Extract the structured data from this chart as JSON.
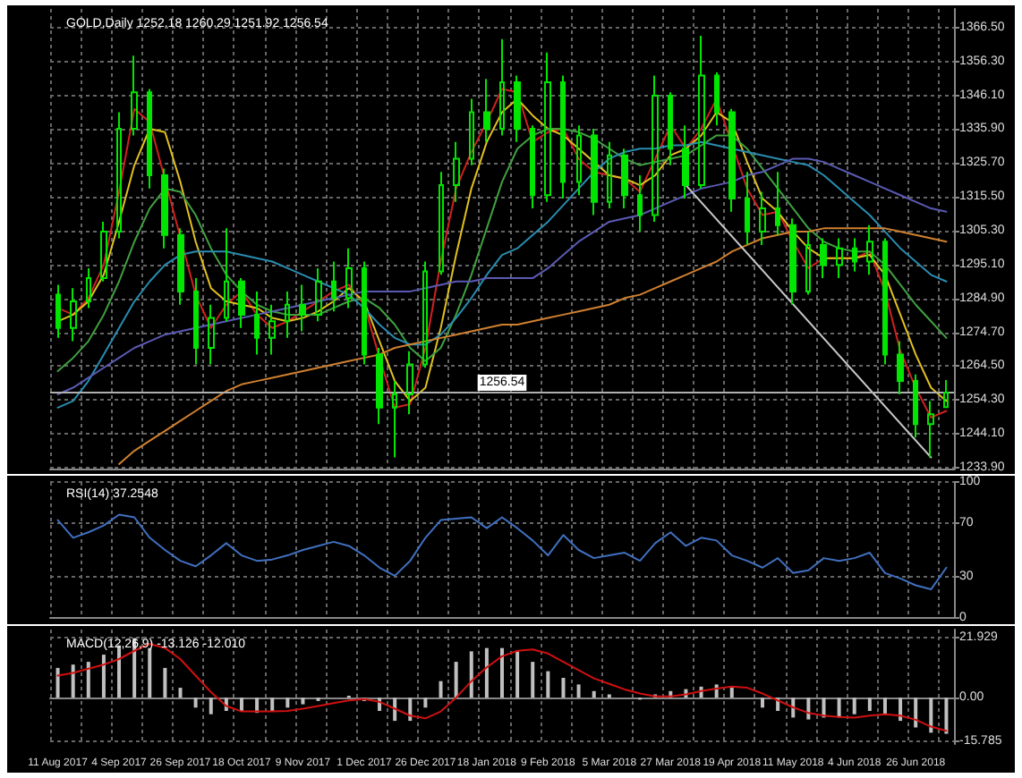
{
  "chart_data": [
    {
      "type": "candlestick",
      "title": "GOLD,Daily 1252.18 1260.29 1251.92 1256.54",
      "categories": [
        null,
        null,
        null,
        null,
        null,
        null,
        null,
        null,
        null,
        null,
        null,
        null,
        null,
        null,
        null,
        null,
        null,
        null,
        null,
        null,
        null,
        null,
        null,
        null,
        null,
        null,
        null,
        null,
        null,
        null,
        null,
        null,
        null,
        null,
        null,
        null,
        null,
        null,
        null,
        null,
        null,
        null,
        null,
        null,
        null,
        null,
        null,
        null,
        null,
        null,
        null,
        null,
        null,
        null,
        null,
        null,
        null,
        null,
        null
      ],
      "color": "#00e600",
      "ohlc": [
        [
          1286,
          1289,
          1273,
          1276
        ],
        [
          1276,
          1288,
          1272,
          1284
        ],
        [
          1284,
          1294,
          1282,
          1291
        ],
        [
          1291,
          1308,
          1290,
          1305
        ],
        [
          1305,
          1341,
          1303,
          1336
        ],
        [
          1336,
          1358,
          1334,
          1347
        ],
        [
          1347,
          1348,
          1318,
          1322
        ],
        [
          1322,
          1324,
          1300,
          1304
        ],
        [
          1304,
          1306,
          1283,
          1287
        ],
        [
          1287,
          1291,
          1265,
          1270
        ],
        [
          1270,
          1283,
          1265,
          1279
        ],
        [
          1279,
          1306,
          1278,
          1290
        ],
        [
          1290,
          1291,
          1276,
          1280
        ],
        [
          1280,
          1287,
          1268,
          1273
        ],
        [
          1273,
          1283,
          1268,
          1278
        ],
        [
          1278,
          1287,
          1273,
          1283
        ],
        [
          1283,
          1289,
          1275,
          1280
        ],
        [
          1280,
          1294,
          1278,
          1290
        ],
        [
          1290,
          1296,
          1281,
          1285
        ],
        [
          1285,
          1300,
          1282,
          1294
        ],
        [
          1294,
          1296,
          1265,
          1268
        ],
        [
          1268,
          1270,
          1247,
          1252
        ],
        [
          1252,
          1260,
          1237,
          1256
        ],
        [
          1256,
          1269,
          1250,
          1265
        ],
        [
          1265,
          1296,
          1264,
          1293
        ],
        [
          1293,
          1323,
          1292,
          1319
        ],
        [
          1319,
          1332,
          1314,
          1327
        ],
        [
          1327,
          1345,
          1325,
          1341
        ],
        [
          1341,
          1351,
          1332,
          1336
        ],
        [
          1336,
          1363,
          1334,
          1350
        ],
        [
          1350,
          1352,
          1332,
          1336
        ],
        [
          1336,
          1337,
          1312,
          1316
        ],
        [
          1316,
          1359,
          1314,
          1350
        ],
        [
          1350,
          1352,
          1315,
          1320
        ],
        [
          1320,
          1337,
          1316,
          1334
        ],
        [
          1334,
          1336,
          1310,
          1314
        ],
        [
          1314,
          1332,
          1312,
          1328
        ],
        [
          1328,
          1330,
          1312,
          1316
        ],
        [
          1316,
          1322,
          1305,
          1310
        ],
        [
          1310,
          1352,
          1308,
          1346
        ],
        [
          1346,
          1347,
          1325,
          1330
        ],
        [
          1330,
          1337,
          1315,
          1319
        ],
        [
          1319,
          1364,
          1318,
          1352
        ],
        [
          1352,
          1353,
          1337,
          1341
        ],
        [
          1341,
          1342,
          1311,
          1315
        ],
        [
          1315,
          1323,
          1301,
          1305
        ],
        [
          1305,
          1317,
          1301,
          1312
        ],
        [
          1312,
          1323,
          1304,
          1307
        ],
        [
          1307,
          1309,
          1283,
          1287
        ],
        [
          1287,
          1305,
          1286,
          1301
        ],
        [
          1301,
          1303,
          1291,
          1295
        ],
        [
          1295,
          1303,
          1291,
          1300
        ],
        [
          1300,
          1303,
          1293,
          1296
        ],
        [
          1296,
          1307,
          1292,
          1302
        ],
        [
          1302,
          1303,
          1265,
          1268
        ],
        [
          1268,
          1272,
          1256,
          1260
        ],
        [
          1260,
          1262,
          1243,
          1247
        ],
        [
          1247,
          1254,
          1237,
          1250
        ],
        [
          1252.18,
          1260.29,
          1251.92,
          1256.54
        ]
      ],
      "series": [
        {
          "type": "line",
          "color": "#d02020",
          "values": [
            1282,
            1280,
            1285,
            1295,
            1317,
            1342,
            1338,
            null,
            null,
            1286,
            1276,
            1283,
            1287,
            1280,
            1276,
            1278,
            1281,
            1284,
            1287,
            1289,
            1283,
            1267,
            1252,
            1253,
            1270,
            1296,
            1318,
            1329,
            1338,
            1348,
            1347,
            1332,
            1335,
            1336,
            1327,
            1323,
            1322,
            1321,
            1317,
            1327,
            1337,
            1330,
            1336,
            1345,
            null,
            1318,
            1310,
            1311,
            1302,
            1294,
            1297,
            1297,
            1297,
            1299,
            1287,
            1269,
            1258,
            1249,
            1251
          ]
        },
        {
          "type": "line",
          "color": "#e0c020",
          "values": [
            1278,
            1280,
            1284,
            1292,
            1308,
            1325,
            1336,
            1335,
            1320,
            1302,
            1288,
            1284,
            1283,
            1282,
            1279,
            1278,
            1279,
            1281,
            1284,
            1288,
            1284,
            1272,
            1260,
            1254,
            1258,
            1276,
            1298,
            1318,
            1332,
            1341,
            1345,
            1340,
            1336,
            1334,
            1330,
            1326,
            1322,
            1321,
            1319,
            1322,
            1328,
            1330,
            1334,
            1341,
            1338,
            1326,
            1315,
            1311,
            1305,
            1300,
            1297,
            1297,
            1297,
            1298,
            1292,
            1280,
            1268,
            1258,
            1254
          ]
        },
        {
          "type": "line",
          "color": "#40a040",
          "values": [
            1263,
            1267,
            1272,
            1280,
            1290,
            1302,
            1312,
            1318,
            1317,
            1310,
            1300,
            1292,
            1287,
            1283,
            1281,
            1280,
            1280,
            1280,
            1282,
            1284,
            1285,
            1282,
            1277,
            1270,
            1266,
            1270,
            1280,
            1292,
            1306,
            1320,
            1330,
            1334,
            1336,
            1336,
            1335,
            1333,
            1330,
            1327,
            1325,
            1326,
            1327,
            1328,
            1331,
            1334,
            1334,
            1330,
            1324,
            1318,
            1312,
            1306,
            1302,
            1300,
            1299,
            1299,
            1295,
            1289,
            1283,
            1278,
            1273
          ]
        },
        {
          "type": "line",
          "color": "#2a8cb0",
          "values": [
            1252,
            1254,
            1260,
            1268,
            1276,
            1284,
            1290,
            1295,
            1298,
            1299,
            1299,
            1299,
            1298,
            1297,
            1296,
            1294,
            1292,
            1290,
            1288,
            1286,
            1282,
            1277,
            1273,
            1271,
            1271,
            1274,
            1279,
            1285,
            1292,
            1298,
            1300,
            1304,
            1308,
            1313,
            1318,
            1323,
            1327,
            1329,
            1330,
            1330,
            1331,
            1331,
            1332,
            1331,
            1330,
            1329,
            1328,
            1327,
            1326,
            1325,
            1322,
            1318,
            1314,
            1310,
            1305,
            1300,
            1296,
            1292,
            1290
          ]
        },
        {
          "type": "line",
          "color": "#5a5ab4",
          "values": [
            1256,
            1258,
            1261,
            1264,
            1267,
            1270,
            1272,
            1274,
            1275,
            1276,
            1277,
            1278,
            1279,
            1280,
            1281,
            1282,
            1283,
            1284,
            1285,
            1286,
            1287,
            1287,
            1287,
            1287,
            1288,
            1289,
            1290,
            1290,
            1291,
            1291,
            1291,
            1291,
            1294,
            1298,
            1302,
            1305,
            1308,
            1309,
            1310,
            1312,
            1314,
            1316,
            1318,
            1319,
            1320,
            1322,
            1323,
            1325,
            1327,
            1327,
            1326,
            1324,
            1322,
            1320,
            1318,
            1316,
            1314,
            1312,
            1311
          ]
        },
        {
          "type": "line",
          "color": "#d08030",
          "values": [
            null,
            null,
            null,
            null,
            1235,
            1239,
            1242,
            1245,
            1248,
            1251,
            1254,
            1257,
            1259,
            1260,
            1261,
            1262,
            1263,
            1264,
            1265,
            1266,
            1267,
            1268,
            1270,
            1271,
            1272,
            1273,
            1274,
            1275,
            1276,
            1277,
            1277,
            1278,
            1279,
            1280,
            1281,
            1282,
            1283,
            1285,
            1286,
            1288,
            1290,
            1292,
            1294,
            1296,
            1299,
            1301,
            1303,
            1304,
            1305,
            1305,
            1306,
            1306,
            1306,
            1306,
            1306,
            1305,
            1304,
            1303,
            1302
          ]
        },
        {
          "type": "line",
          "color": "#c8c8c8",
          "values": [
            null,
            null,
            null,
            null,
            null,
            null,
            null,
            null,
            null,
            null,
            null,
            null,
            null,
            null,
            null,
            null,
            null,
            null,
            null,
            null,
            null,
            null,
            null,
            null,
            null,
            null,
            null,
            null,
            null,
            null,
            null,
            null,
            null,
            null,
            null,
            null,
            null,
            null,
            null,
            null,
            null,
            1319,
            null,
            null,
            null,
            null,
            null,
            null,
            null,
            null,
            null,
            null,
            null,
            null,
            null,
            null,
            null,
            1237,
            null
          ]
        }
      ],
      "ylim": [
        1233.4,
        1372.1
      ],
      "yticks": [
        {
          "value": 1233.9,
          "label": "1233.90"
        },
        {
          "value": 1244.1,
          "label": "1244.10"
        },
        {
          "value": 1254.3,
          "label": "1254.30"
        },
        {
          "value": 1264.5,
          "label": "1264.50"
        },
        {
          "value": 1274.7,
          "label": "1274.70"
        },
        {
          "value": 1284.9,
          "label": "1284.90"
        },
        {
          "value": 1295.1,
          "label": "1295.10"
        },
        {
          "value": 1305.3,
          "label": "1305.30"
        },
        {
          "value": 1315.5,
          "label": "1315.50"
        },
        {
          "value": 1325.7,
          "label": "1325.70"
        },
        {
          "value": 1335.9,
          "label": "1335.90"
        },
        {
          "value": 1346.1,
          "label": "1346.10"
        },
        {
          "value": 1356.3,
          "label": "1356.30"
        },
        {
          "value": 1366.5,
          "label": "1366.50"
        }
      ],
      "ref_lines": [
        {
          "axis": "y",
          "value": 1256.54,
          "label": "1256.54",
          "color": "#b0b0b0"
        }
      ],
      "grid": true,
      "tick_labels": "y"
    },
    {
      "type": "line",
      "title": "RSI(14) 37.2548",
      "categories": [
        null,
        null,
        null,
        null,
        null,
        null,
        null,
        null,
        null,
        null,
        null,
        null,
        null,
        null,
        null,
        null,
        null,
        null,
        null,
        null,
        null,
        null,
        null,
        null,
        null,
        null,
        null,
        null,
        null,
        null,
        null,
        null,
        null,
        null,
        null,
        null,
        null,
        null,
        null,
        null,
        null,
        null,
        null,
        null,
        null,
        null,
        null,
        null,
        null,
        null,
        null,
        null,
        null,
        null,
        null,
        null,
        null,
        null,
        null
      ],
      "color": "#4070c0",
      "values": [
        72,
        59,
        63,
        68,
        76,
        74,
        59,
        50,
        42,
        38,
        46,
        55,
        46,
        42,
        43,
        46,
        50,
        53,
        56,
        53,
        46,
        37,
        31,
        42,
        59,
        72,
        73,
        74,
        66,
        74,
        66,
        57,
        46,
        61,
        50,
        44,
        46,
        48,
        42,
        55,
        63,
        53,
        59,
        57,
        46,
        42,
        37,
        44,
        33,
        35,
        44,
        42,
        44,
        48,
        33,
        29,
        24,
        21,
        37
      ],
      "ylim": [
        0,
        100
      ],
      "yticks": [
        0,
        30,
        70,
        100
      ],
      "grid": true,
      "tick_labels": "y"
    },
    {
      "type": "bar",
      "title": "MACD(12,26,9) -13.126 -12.010",
      "categories": [
        "11 Aug 2017",
        null,
        null,
        null,
        "4 Sep 2017",
        null,
        null,
        null,
        "26 Sep 2017",
        null,
        null,
        null,
        "18 Oct 2017",
        null,
        null,
        null,
        "9 Nov 2017",
        null,
        null,
        null,
        "1 Dec 2017",
        null,
        null,
        null,
        "26 Dec 2017",
        null,
        null,
        null,
        "18 Jan 2018",
        null,
        null,
        null,
        "9 Feb 2018",
        null,
        null,
        null,
        "5 Mar 2018",
        null,
        null,
        null,
        "27 Mar 2018",
        null,
        null,
        null,
        "19 Apr 2018",
        null,
        null,
        null,
        "11 May 2018",
        null,
        null,
        null,
        "4 Jun 2018",
        null,
        null,
        null,
        "26 Jun 2018",
        null,
        null
      ],
      "series": [
        {
          "type": "bar",
          "color": "#c0c0c0",
          "values": [
            10.8,
            12,
            13,
            15.6,
            19,
            21.6,
            18,
            10.8,
            3.6,
            -3.6,
            -6,
            -4.8,
            -4.8,
            -5.5,
            -4.8,
            -3.6,
            -2.4,
            -1.2,
            0,
            0.7,
            -1.2,
            -4.8,
            -8.4,
            -8.4,
            -3.6,
            6,
            13,
            16.8,
            18,
            18,
            16.8,
            13,
            9.6,
            7.2,
            4.8,
            2.4,
            1.2,
            0,
            -0.7,
            1.2,
            2.4,
            3.1,
            4,
            4.8,
            3.6,
            0,
            -3.6,
            -4.8,
            -7.2,
            -7.9,
            -7.2,
            -7.2,
            -6,
            -4.8,
            -6,
            -8.4,
            -10.8,
            -12.7,
            -13.1
          ]
        },
        {
          "type": "line",
          "color": "#d01010",
          "values": [
            8,
            9,
            10.5,
            12,
            14,
            17,
            19.5,
            18,
            14,
            8,
            2,
            -3,
            -5,
            -5,
            -5,
            -4.8,
            -4,
            -3,
            -2,
            -1,
            -0.5,
            -1.5,
            -4,
            -6.5,
            -7.5,
            -5,
            0,
            6,
            11,
            15,
            17,
            17.5,
            16,
            13,
            10,
            7,
            5,
            3,
            1.5,
            0.5,
            0.5,
            1.2,
            2.4,
            3.3,
            4,
            3.6,
            1.5,
            -1,
            -3.5,
            -5.5,
            -6.5,
            -7,
            -7.2,
            -6.5,
            -6,
            -6.5,
            -8,
            -10.5,
            -12
          ]
        }
      ],
      "ylim": [
        -16.8,
        24.7
      ],
      "yticks": [
        {
          "value": 21.929,
          "label": "21.929"
        },
        {
          "value": 0,
          "label": "0.00"
        },
        {
          "value": -15.785,
          "label": "-15.785"
        }
      ],
      "grid": true
    }
  ]
}
